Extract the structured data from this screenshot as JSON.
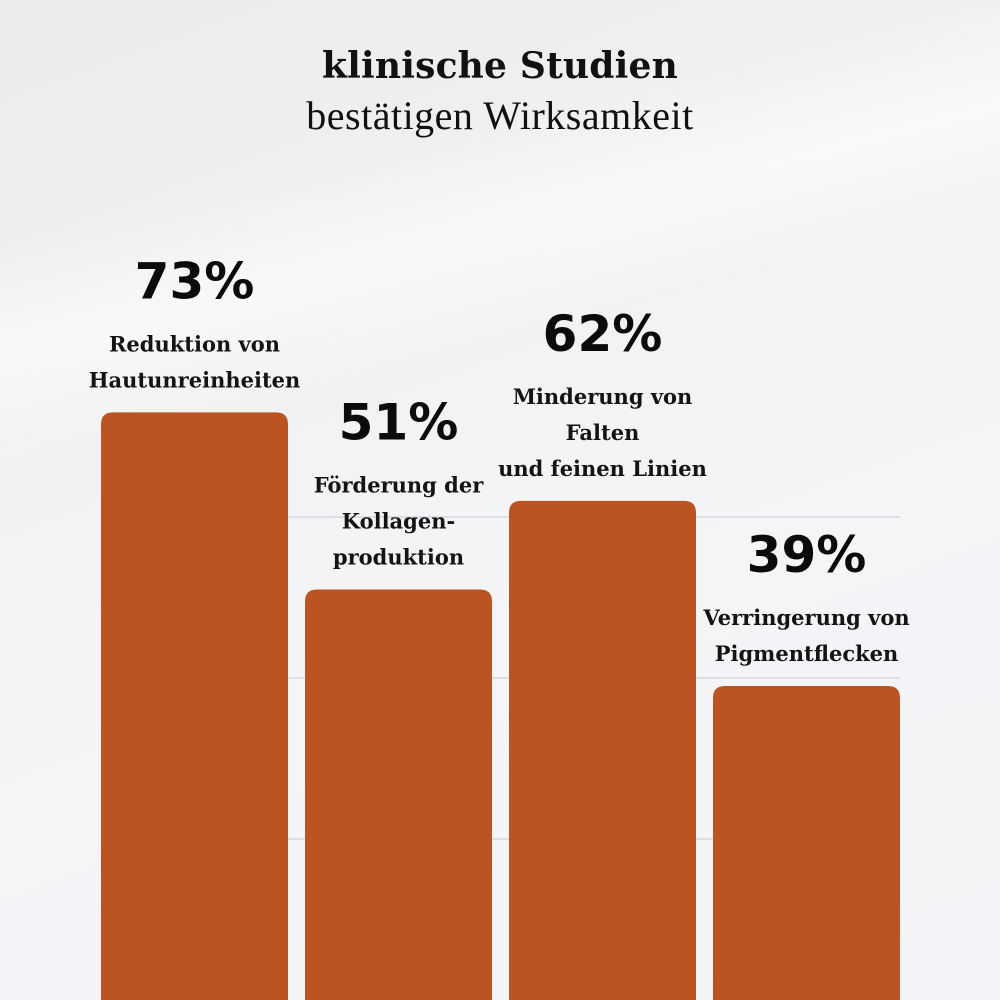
{
  "title": "klinische Studien",
  "subtitle": "bestätigen Wirksamkeit",
  "chart_data": {
    "type": "bar",
    "categories": [
      "Reduktion von Hautunreinheiten",
      "Förderung der Kollagenproduktion",
      "Minderung von Falten und feinen Linien",
      "Verringerung von Pigmentflecken"
    ],
    "category_label_lines": [
      [
        "Reduktion von",
        "Hautunreinheiten"
      ],
      [
        "Förderung der",
        "Kollagen-",
        "produktion"
      ],
      [
        "Minderung von",
        "Falten",
        "und feinen Linien"
      ],
      [
        "Verringerung von",
        "Pigmentflecken"
      ]
    ],
    "values": [
      73,
      51,
      62,
      39
    ],
    "value_labels": [
      "73%",
      "51%",
      "62%",
      "39%"
    ],
    "bar_color": "#bc5422",
    "grid_color": "#cfd4da",
    "grid": true,
    "gridlines": [
      20,
      40,
      60
    ],
    "ylim": [
      0,
      100
    ],
    "xlabel": "",
    "ylabel": ""
  }
}
